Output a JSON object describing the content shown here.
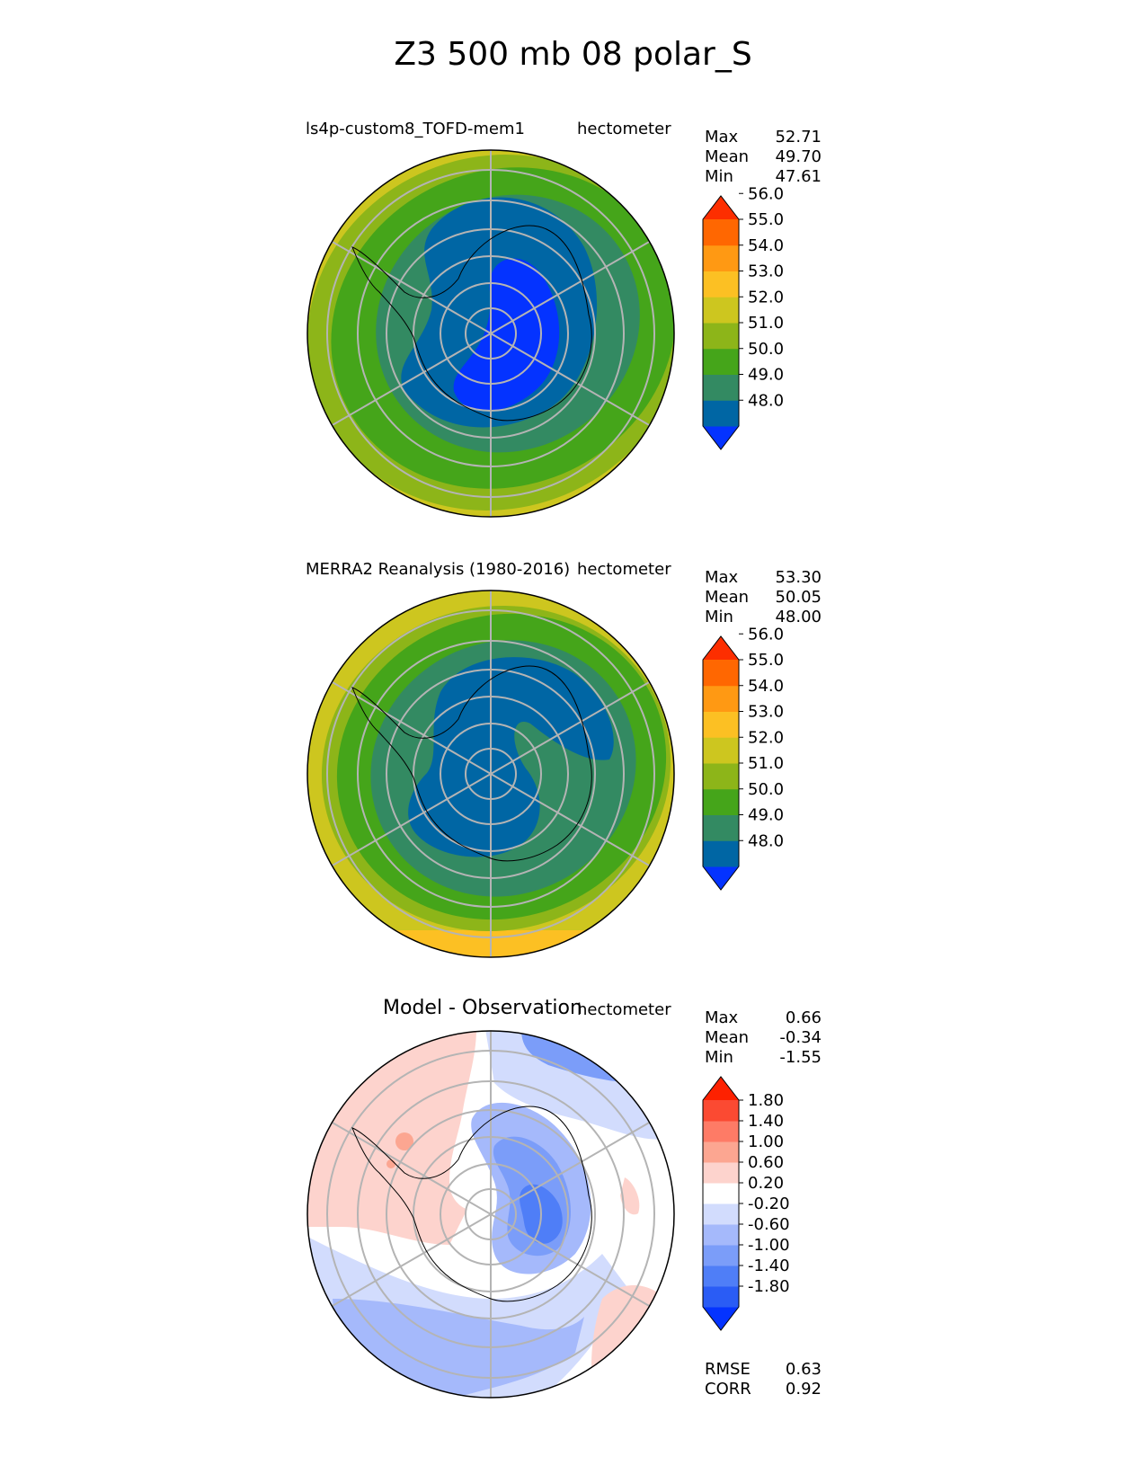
{
  "title": "Z3 500 mb 08 polar_S",
  "panels": [
    {
      "left_label": "ls4p-custom8_TOFD-mem1",
      "units": "hectometer",
      "stats": [
        {
          "k": "Max",
          "v": "52.71"
        },
        {
          "k": "Mean",
          "v": "49.70"
        },
        {
          "k": "Min",
          "v": "47.61"
        }
      ],
      "colorbar": {
        "colors": [
          "#0433ff",
          "#0066a4",
          "#338a62",
          "#45a51a",
          "#8db519",
          "#cdc61f",
          "#fcc023",
          "#ff9913",
          "#ff6701",
          "#fd2e00"
        ],
        "ticks": [
          "48.0",
          "49.0",
          "50.0",
          "51.0",
          "52.0",
          "53.0",
          "54.0",
          "55.0",
          "56.0"
        ]
      }
    },
    {
      "left_label": "MERRA2 Reanalysis (1980-2016)",
      "units": "hectometer",
      "stats": [
        {
          "k": "Max",
          "v": "53.30"
        },
        {
          "k": "Mean",
          "v": "50.05"
        },
        {
          "k": "Min",
          "v": "48.00"
        }
      ],
      "colorbar": {
        "colors": [
          "#0433ff",
          "#0066a4",
          "#338a62",
          "#45a51a",
          "#8db519",
          "#cdc61f",
          "#fcc023",
          "#ff9913",
          "#ff6701",
          "#fd2e00"
        ],
        "ticks": [
          "48.0",
          "49.0",
          "50.0",
          "51.0",
          "52.0",
          "53.0",
          "54.0",
          "55.0",
          "56.0"
        ]
      }
    },
    {
      "center_label": "Model - Observation",
      "units": "hectometer",
      "stats": [
        {
          "k": "Max",
          "v": "0.66"
        },
        {
          "k": "Mean",
          "v": "-0.34"
        },
        {
          "k": "Min",
          "v": "-1.55"
        }
      ],
      "extra_stats": [
        {
          "k": "RMSE",
          "v": "0.63"
        },
        {
          "k": "CORR",
          "v": "0.92"
        }
      ],
      "colorbar": {
        "colors": [
          "#0433ff",
          "#2a5cf5",
          "#4f7ef7",
          "#7b9df9",
          "#a5b9fb",
          "#d2dcfd",
          "#ffffff",
          "#fdd3cd",
          "#fca691",
          "#fe7b66",
          "#fb4a32",
          "#fd2100"
        ],
        "ticks": [
          "-1.80",
          "-1.40",
          "-1.00",
          "-0.60",
          "-0.20",
          "0.20",
          "0.60",
          "1.00",
          "1.40",
          "1.80"
        ]
      }
    }
  ],
  "chart_data": [
    {
      "type": "heatmap",
      "title": "ls4p-custom8_TOFD-mem1",
      "projection": "south polar stereographic",
      "units": "hectometer",
      "levels": [
        48.0,
        49.0,
        50.0,
        51.0,
        52.0,
        53.0,
        54.0,
        55.0,
        56.0
      ],
      "max": 52.71,
      "mean": 49.7,
      "min": 47.61
    },
    {
      "type": "heatmap",
      "title": "MERRA2 Reanalysis (1980-2016)",
      "projection": "south polar stereographic",
      "units": "hectometer",
      "levels": [
        48.0,
        49.0,
        50.0,
        51.0,
        52.0,
        53.0,
        54.0,
        55.0,
        56.0
      ],
      "max": 53.3,
      "mean": 50.05,
      "min": 48.0
    },
    {
      "type": "heatmap",
      "title": "Model - Observation",
      "projection": "south polar stereographic",
      "units": "hectometer",
      "levels": [
        -1.8,
        -1.4,
        -1.0,
        -0.6,
        -0.2,
        0.2,
        0.6,
        1.0,
        1.4,
        1.8
      ],
      "max": 0.66,
      "mean": -0.34,
      "min": -1.55,
      "rmse": 0.63,
      "corr": 0.92
    }
  ]
}
